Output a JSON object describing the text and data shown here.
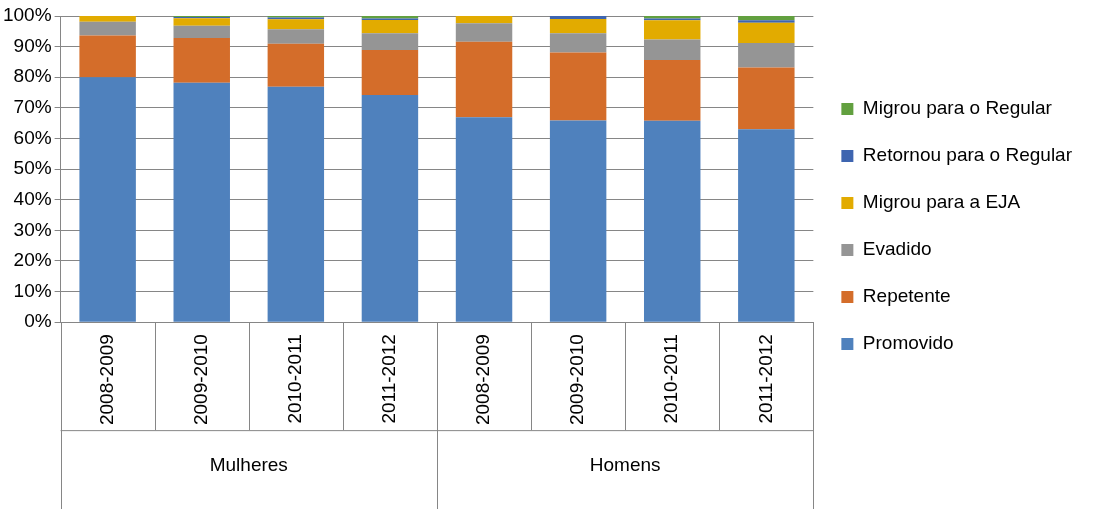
{
  "chart_data": {
    "type": "bar",
    "stacked": true,
    "categories": [
      "2008-2009",
      "2009-2010",
      "2010-2011",
      "2011-2012",
      "2008-2009",
      "2009-2010",
      "2010-2011",
      "2011-2012"
    ],
    "annotations": [
      "Mulheres",
      "Homens"
    ],
    "series": [
      {
        "name": "Promovido",
        "color": "#4f81bd",
        "values": [
          80.0,
          78.2,
          76.9,
          74.2,
          66.9,
          65.9,
          65.8,
          63.0
        ]
      },
      {
        "name": "Repetente",
        "color": "#d46d2a",
        "values": [
          13.6,
          14.6,
          14.0,
          14.7,
          24.7,
          22.2,
          19.8,
          20.2
        ]
      },
      {
        "name": "Evadido",
        "color": "#959595",
        "values": [
          4.5,
          4.0,
          4.8,
          5.5,
          6.0,
          6.3,
          6.7,
          8.0
        ]
      },
      {
        "name": "Migrou para a EJA",
        "color": "#e2ab00",
        "values": [
          1.9,
          2.5,
          3.2,
          4.3,
          2.4,
          4.6,
          6.3,
          6.6
        ]
      },
      {
        "name": "Retornou para o Regular",
        "color": "#3e65b0",
        "values": [
          0,
          0.4,
          0.6,
          0.5,
          0,
          1.0,
          0.6,
          0.8
        ]
      },
      {
        "name": "Migrou para o Regular",
        "color": "#62a03f",
        "values": [
          0,
          0.3,
          0.5,
          0.8,
          0,
          null,
          0.8,
          1.4
        ]
      }
    ],
    "ylim": [
      0,
      100
    ],
    "yticks": [
      {
        "value": 0,
        "label": "0%"
      },
      {
        "value": 10,
        "label": "10%"
      },
      {
        "value": 20,
        "label": "20%"
      },
      {
        "value": 30,
        "label": "30%"
      },
      {
        "value": 40,
        "label": "40%"
      },
      {
        "value": 50,
        "label": "50%"
      },
      {
        "value": 60,
        "label": "60%"
      },
      {
        "value": 70,
        "label": "70%"
      },
      {
        "value": 80,
        "label": "80%"
      },
      {
        "value": 90,
        "label": "90%"
      },
      {
        "value": 100,
        "label": "100%"
      }
    ],
    "grid": "y",
    "legend": "right"
  }
}
